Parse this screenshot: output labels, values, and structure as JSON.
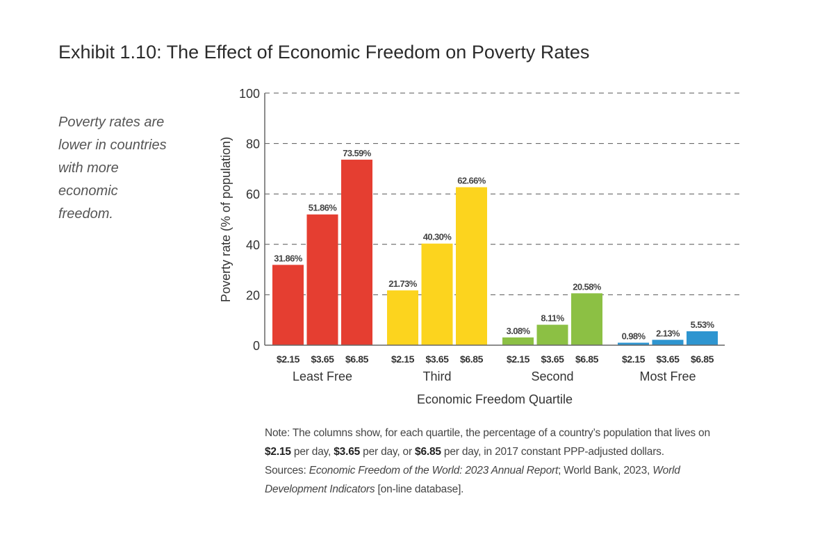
{
  "title": "Exhibit 1.10: The Effect of Economic Freedom on Poverty Rates",
  "side_note": "Poverty rates are lower in countries with more economic freedom.",
  "chart_data": {
    "type": "bar",
    "xlabel": "Economic Freedom Quartile",
    "ylabel": "Poverty rate (% of population)",
    "ylim": [
      0,
      100
    ],
    "yticks": [
      "0",
      "20",
      "40",
      "60",
      "80",
      "100"
    ],
    "grid": "horizontal dashed",
    "groups": [
      {
        "name": "Least Free",
        "color": "#e53e31",
        "categories": [
          "$2.15",
          "$3.65",
          "$6.85"
        ],
        "values": [
          31.86,
          51.86,
          73.59
        ],
        "labels": [
          "31.86%",
          "51.86%",
          "73.59%"
        ]
      },
      {
        "name": "Third",
        "color": "#fcd41e",
        "categories": [
          "$2.15",
          "$3.65",
          "$6.85"
        ],
        "values": [
          21.73,
          40.3,
          62.66
        ],
        "labels": [
          "21.73%",
          "40.30%",
          "62.66%"
        ]
      },
      {
        "name": "Second",
        "color": "#8cc044",
        "categories": [
          "$2.15",
          "$3.65",
          "$6.85"
        ],
        "values": [
          3.08,
          8.11,
          20.58
        ],
        "labels": [
          "3.08%",
          "8.11%",
          "20.58%"
        ]
      },
      {
        "name": "Most Free",
        "color": "#2e95d0",
        "categories": [
          "$2.15",
          "$3.65",
          "$6.85"
        ],
        "values": [
          0.98,
          2.13,
          5.53
        ],
        "labels": [
          "0.98%",
          "2.13%",
          "5.53%"
        ]
      }
    ]
  },
  "note": [
    {
      "t": "Note: The columns show, for each quartile, the percentage of a country’s population that lives on ",
      "s": "n"
    },
    {
      "t": "$2.15",
      "s": "b"
    },
    {
      "t": " per day, ",
      "s": "n"
    },
    {
      "t": "$3.65",
      "s": "b"
    },
    {
      "t": " per day, or ",
      "s": "n"
    },
    {
      "t": "$6.85",
      "s": "b"
    },
    {
      "t": " per day, in 2017 constant PPP-adjusted dollars.",
      "s": "n"
    },
    {
      "t": "BR",
      "s": "br"
    },
    {
      "t": "Sources: ",
      "s": "n"
    },
    {
      "t": "Economic Freedom of the World: 2023 Annual Report",
      "s": "i"
    },
    {
      "t": "; World Bank, 2023, ",
      "s": "n"
    },
    {
      "t": "World Development Indicators",
      "s": "i"
    },
    {
      "t": " [on-line database].",
      "s": "n"
    }
  ]
}
